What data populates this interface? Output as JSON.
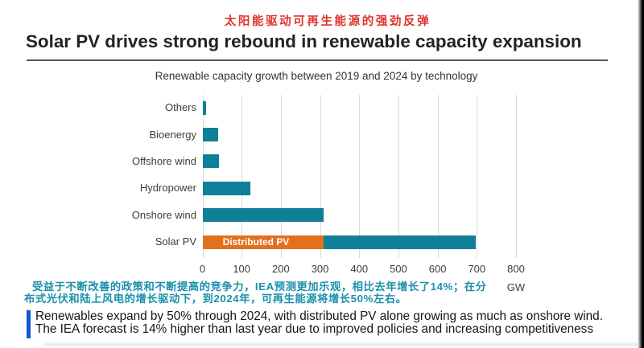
{
  "header": {
    "cn_title": "太阳能驱动可再生能源的强劲反弹",
    "title": "Solar PV drives strong rebound in renewable capacity expansion"
  },
  "chart_data": {
    "type": "bar",
    "orientation": "horizontal",
    "title": "Renewable capacity growth between 2019 and 2024 by technology",
    "unit": "GW",
    "xlim": [
      0,
      800
    ],
    "xticks": [
      0,
      100,
      200,
      300,
      400,
      500,
      600,
      700,
      800
    ],
    "grid": true,
    "categories": [
      "Others",
      "Bioenergy",
      "Offshore wind",
      "Hydropower",
      "Onshore wind",
      "Solar PV"
    ],
    "values": [
      9,
      40,
      43,
      122,
      310,
      697
    ],
    "bars": [
      {
        "category": "Others",
        "segments": [
          {
            "value": 9,
            "color": "teal"
          }
        ]
      },
      {
        "category": "Bioenergy",
        "segments": [
          {
            "value": 40,
            "color": "teal"
          }
        ]
      },
      {
        "category": "Offshore wind",
        "segments": [
          {
            "value": 43,
            "color": "teal"
          }
        ]
      },
      {
        "category": "Hydropower",
        "segments": [
          {
            "value": 122,
            "color": "teal"
          }
        ]
      },
      {
        "category": "Onshore wind",
        "segments": [
          {
            "value": 310,
            "color": "teal"
          }
        ]
      },
      {
        "category": "Solar PV",
        "segments": [
          {
            "value": 310,
            "color": "orange",
            "label": "Distributed PV"
          },
          {
            "value": 387,
            "color": "teal"
          }
        ]
      }
    ],
    "palette": {
      "teal": "#0f8097",
      "orange": "#e2711d"
    },
    "gridline_color": "#d9d9d9"
  },
  "note_cn": {
    "line1": "受益于不断改善的政策和不断提高的竞争力，IEA预测更加乐观，相比去年增长了14%；在分",
    "line2": "布式光伏和陆上风电的增长驱动下，到2024年，可再生能源将增长50%左右。"
  },
  "footer": {
    "line1": "Renewables expand by 50% through 2024, with distributed PV alone growing as much as onshore wind.",
    "line2": "The IEA forecast is 14% higher than last year due to improved policies and increasing competitiveness"
  }
}
